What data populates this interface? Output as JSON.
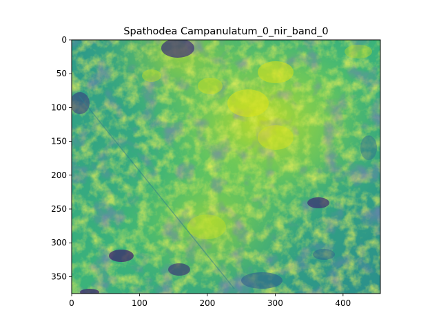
{
  "figure": {
    "title": "Spathodea Campanulatum_0_nir_band_0",
    "colormap": "viridis",
    "image_extent": {
      "x": [
        0,
        455
      ],
      "y": [
        0,
        375
      ]
    },
    "x_axis": {
      "ticks": [
        0,
        100,
        200,
        300,
        400
      ],
      "labels": [
        "0",
        "100",
        "200",
        "300",
        "400"
      ]
    },
    "y_axis": {
      "ticks": [
        0,
        50,
        100,
        150,
        200,
        250,
        300,
        350
      ],
      "labels": [
        "0",
        "50",
        "100",
        "150",
        "200",
        "250",
        "300",
        "350"
      ]
    },
    "colors": {
      "dark": "#3b1a6a",
      "mid_dark": "#2b6f8e",
      "mid": "#23988b",
      "mid_light": "#3fbc73",
      "light": "#8fd744",
      "bright": "#d7e219"
    }
  }
}
